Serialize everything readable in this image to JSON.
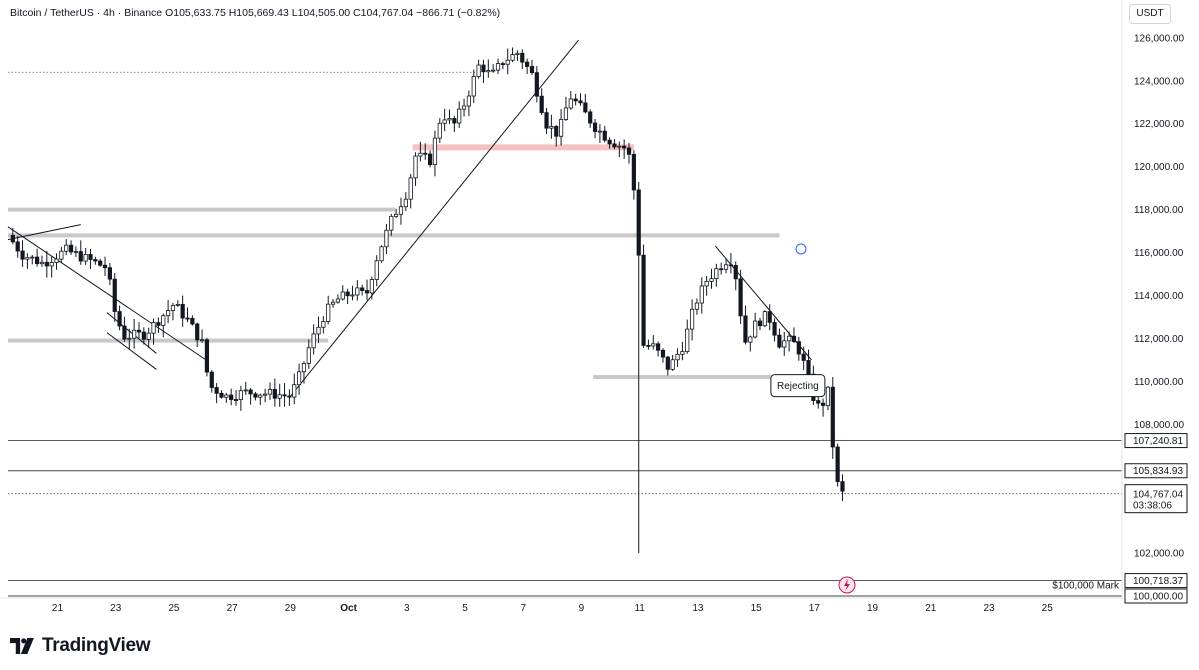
{
  "header": {
    "symbol": "Bitcoin / TetherUS · 4h · Binance",
    "ohlc": "O105,633.75 H105,669.43 L104,505.00 C104,767.04 −866.71 (−0.82%)"
  },
  "currency": "USDT",
  "brand": {
    "name": "TradingView",
    "logo": "tradingview-logo-icon"
  },
  "colors": {
    "bull": "#131722",
    "bear": "#131722",
    "zone": "#f4c2c2",
    "level": "#c8c8c8"
  },
  "chart_data": {
    "type": "candlestick",
    "title": "",
    "xlabel": "",
    "ylabel": "",
    "ylim": [
      100000,
      126600
    ],
    "y_ticks": [
      "126,000.00",
      "124,000.00",
      "122,000.00",
      "120,000.00",
      "118,000.00",
      "116,000.00",
      "114,000.00",
      "112,000.00",
      "110,000.00",
      "108,000.00",
      "102,000.00"
    ],
    "x_ticks": [
      {
        "label": "21",
        "day": 21
      },
      {
        "label": "23",
        "day": 23
      },
      {
        "label": "25",
        "day": 25
      },
      {
        "label": "27",
        "day": 27
      },
      {
        "label": "29",
        "day": 29
      },
      {
        "label": "Oct",
        "day": 31
      },
      {
        "label": "3",
        "day": 33
      },
      {
        "label": "5",
        "day": 35
      },
      {
        "label": "7",
        "day": 37
      },
      {
        "label": "9",
        "day": 39
      },
      {
        "label": "11",
        "day": 41
      },
      {
        "label": "13",
        "day": 43
      },
      {
        "label": "15",
        "day": 45
      },
      {
        "label": "17",
        "day": 47
      },
      {
        "label": "19",
        "day": 49
      },
      {
        "label": "21",
        "day": 51
      },
      {
        "label": "23",
        "day": 53
      },
      {
        "label": "25",
        "day": 55
      }
    ],
    "x_range": [
      19.3,
      57.5
    ],
    "price_path": [
      [
        19.3,
        116800
      ],
      [
        19.8,
        115900
      ],
      [
        20.5,
        115500
      ],
      [
        21.3,
        116100
      ],
      [
        22.0,
        115700
      ],
      [
        22.7,
        115300
      ],
      [
        23.0,
        113000
      ],
      [
        23.3,
        112100
      ],
      [
        24.0,
        112200
      ],
      [
        24.5,
        112900
      ],
      [
        25.0,
        113600
      ],
      [
        25.5,
        112800
      ],
      [
        26.0,
        111700
      ],
      [
        26.2,
        109800
      ],
      [
        26.8,
        109300
      ],
      [
        27.5,
        109500
      ],
      [
        28.5,
        109400
      ],
      [
        29.0,
        109300
      ],
      [
        29.3,
        110200
      ],
      [
        29.7,
        111800
      ],
      [
        30.2,
        113200
      ],
      [
        30.6,
        113800
      ],
      [
        31.2,
        114200
      ],
      [
        31.6,
        114000
      ],
      [
        32.0,
        115900
      ],
      [
        32.5,
        117600
      ],
      [
        33.0,
        118800
      ],
      [
        33.3,
        120500
      ],
      [
        33.8,
        120300
      ],
      [
        34.2,
        122500
      ],
      [
        34.6,
        121900
      ],
      [
        35.0,
        123000
      ],
      [
        35.5,
        124800
      ],
      [
        35.9,
        124200
      ],
      [
        36.3,
        124900
      ],
      [
        36.8,
        125300
      ],
      [
        37.3,
        124300
      ],
      [
        37.8,
        122000
      ],
      [
        38.2,
        121500
      ],
      [
        38.6,
        123300
      ],
      [
        39.0,
        122700
      ],
      [
        39.5,
        121800
      ],
      [
        40.0,
        121200
      ],
      [
        40.6,
        120800
      ],
      [
        40.9,
        118000
      ],
      [
        41.0,
        115000
      ],
      [
        41.1,
        111700
      ],
      [
        41.5,
        111600
      ],
      [
        42.0,
        110600
      ],
      [
        42.5,
        111700
      ],
      [
        42.9,
        113600
      ],
      [
        43.3,
        114700
      ],
      [
        43.7,
        115300
      ],
      [
        44.1,
        115800
      ],
      [
        44.3,
        114900
      ],
      [
        44.6,
        111800
      ],
      [
        45.0,
        112700
      ],
      [
        45.4,
        113100
      ],
      [
        45.8,
        111800
      ],
      [
        46.1,
        111900
      ],
      [
        46.4,
        111700
      ],
      [
        46.7,
        110600
      ],
      [
        47.0,
        109100
      ],
      [
        47.2,
        108700
      ],
      [
        47.5,
        109600
      ],
      [
        47.6,
        107400
      ],
      [
        47.8,
        105200
      ],
      [
        48.0,
        104700
      ]
    ],
    "annotations": [
      {
        "text": "Rejecting",
        "type": "callout",
        "day": 46.4,
        "price": 109800
      },
      {
        "text": "$100,000 Mark",
        "type": "label",
        "price": 100500
      }
    ],
    "price_labels": [
      {
        "text": "107,240.81",
        "price": 107240.81,
        "style": "outlined"
      },
      {
        "text": "105,834.93",
        "price": 105834.93,
        "style": "outlined"
      },
      {
        "text": "104,767.04",
        "sub": "03:38:06",
        "price": 104767.04,
        "style": "dark"
      },
      {
        "text": "100,718.37",
        "price": 100718.37,
        "style": "outlined"
      },
      {
        "text": "100,000.00",
        "price": 100000,
        "style": "outlined"
      }
    ],
    "horizontal_levels": [
      {
        "price": 107240.81,
        "style": "solid",
        "day_start": 19.3
      },
      {
        "price": 105834.93,
        "style": "solid",
        "day_start": 19.3
      },
      {
        "price": 104767.04,
        "style": "dotted",
        "day_start": 19.3
      },
      {
        "price": 100718.37,
        "style": "solid",
        "day_start": 19.3
      },
      {
        "price": 100000,
        "style": "solid",
        "day_start": 19.3
      },
      {
        "price": 124400,
        "style": "dotted",
        "day_start": 19.3,
        "day_end": 35.5
      },
      {
        "price": 118000,
        "style": "band",
        "day_start": 19.3,
        "day_end": 32.6
      },
      {
        "price": 116800,
        "style": "band",
        "day_start": 19.3,
        "day_end": 45.8
      },
      {
        "price": 111900,
        "style": "band",
        "day_start": 19.3,
        "day_end": 30.3
      },
      {
        "price": 110200,
        "style": "band",
        "day_start": 39.4,
        "day_end": 47.0
      },
      {
        "price": 120900,
        "style": "zone",
        "day_start": 33.2,
        "day_end": 40.8
      }
    ],
    "trendlines": [
      [
        19.3,
        117200,
        26.1,
        111000
      ],
      [
        19.3,
        116600,
        21.8,
        117300
      ],
      [
        29.0,
        109300,
        38.9,
        125900
      ],
      [
        43.6,
        116300,
        46.9,
        111000
      ]
    ],
    "wedge": [
      [
        22.7,
        113200
      ],
      [
        24.4,
        111300
      ]
    ]
  }
}
